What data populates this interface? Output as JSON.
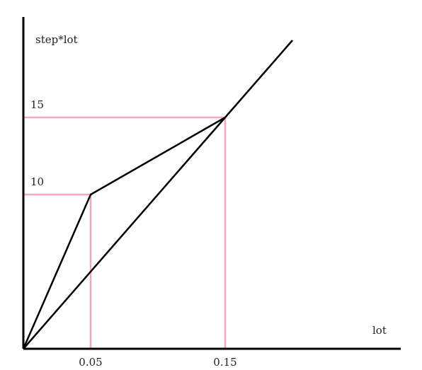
{
  "chart_data": {
    "type": "line",
    "title": "",
    "xlabel": "lot",
    "ylabel": "step*lot",
    "grid": false,
    "xlim": [
      0,
      0.225
    ],
    "ylim": [
      0,
      22.2
    ],
    "x_ticks": [
      {
        "value": 0.05,
        "label": "0.05"
      },
      {
        "value": 0.15,
        "label": "0.15"
      }
    ],
    "y_ticks": [
      {
        "value": 10,
        "label": "10"
      },
      {
        "value": 15,
        "label": "15"
      }
    ],
    "series": [
      {
        "x": [
          0,
          0.05,
          0.15
        ],
        "y": [
          0,
          10,
          15
        ]
      },
      {
        "x": [
          0,
          0.15,
          0.2
        ],
        "y": [
          0,
          15,
          20
        ]
      }
    ],
    "reference_points": [
      {
        "x": 0.05,
        "y": 10
      },
      {
        "x": 0.15,
        "y": 15
      }
    ],
    "colors": {
      "axes": "#000000",
      "series": "#000000",
      "reference": "#f4a7c4",
      "text": "#222222"
    }
  }
}
